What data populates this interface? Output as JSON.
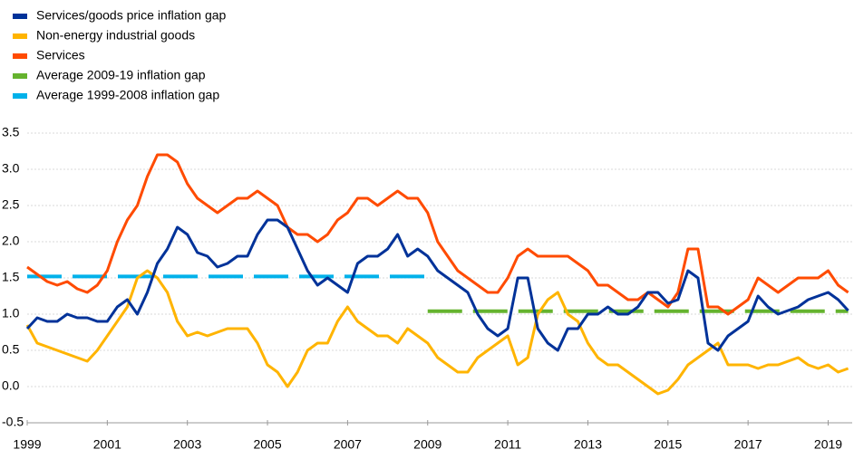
{
  "chart_data": {
    "type": "line",
    "x": [
      1999,
      1999.25,
      1999.5,
      1999.75,
      2000,
      2000.25,
      2000.5,
      2000.75,
      2001,
      2001.25,
      2001.5,
      2001.75,
      2002,
      2002.25,
      2002.5,
      2002.75,
      2003,
      2003.25,
      2003.5,
      2003.75,
      2004,
      2004.25,
      2004.5,
      2004.75,
      2005,
      2005.25,
      2005.5,
      2005.75,
      2006,
      2006.25,
      2006.5,
      2006.75,
      2007,
      2007.25,
      2007.5,
      2007.75,
      2008,
      2008.25,
      2008.5,
      2008.75,
      2009,
      2009.25,
      2009.5,
      2009.75,
      2010,
      2010.25,
      2010.5,
      2010.75,
      2011,
      2011.25,
      2011.5,
      2011.75,
      2012,
      2012.25,
      2012.5,
      2012.75,
      2013,
      2013.25,
      2013.5,
      2013.75,
      2014,
      2014.25,
      2014.5,
      2014.75,
      2015,
      2015.25,
      2015.5,
      2015.75,
      2016,
      2016.25,
      2016.5,
      2016.75,
      2017,
      2017.25,
      2017.5,
      2017.75,
      2018,
      2018.25,
      2018.5,
      2018.75,
      2019,
      2019.25,
      2019.5
    ],
    "series": [
      {
        "name": "Services/goods price inflation gap",
        "color": "#003299",
        "values": [
          0.8,
          0.95,
          0.9,
          0.9,
          1.0,
          0.95,
          0.95,
          0.9,
          0.9,
          1.1,
          1.2,
          1.0,
          1.3,
          1.7,
          1.9,
          2.2,
          2.1,
          1.85,
          1.8,
          1.65,
          1.7,
          1.8,
          1.8,
          2.1,
          2.3,
          2.3,
          2.2,
          1.9,
          1.6,
          1.4,
          1.5,
          1.4,
          1.3,
          1.7,
          1.8,
          1.8,
          1.9,
          2.1,
          1.8,
          1.9,
          1.8,
          1.6,
          1.5,
          1.4,
          1.3,
          1.0,
          0.8,
          0.7,
          0.8,
          1.5,
          1.5,
          0.8,
          0.6,
          0.5,
          0.8,
          0.8,
          1.0,
          1.0,
          1.1,
          1.0,
          1.0,
          1.1,
          1.3,
          1.3,
          1.15,
          1.2,
          1.6,
          1.5,
          0.6,
          0.5,
          0.7,
          0.8,
          0.9,
          1.25,
          1.1,
          1.0,
          1.05,
          1.1,
          1.2,
          1.25,
          1.3,
          1.2,
          1.05
        ]
      },
      {
        "name": "Non-energy industrial goods",
        "color": "#ffb400",
        "values": [
          0.85,
          0.6,
          0.55,
          0.5,
          0.45,
          0.4,
          0.35,
          0.5,
          0.7,
          0.9,
          1.1,
          1.5,
          1.6,
          1.5,
          1.3,
          0.9,
          0.7,
          0.75,
          0.7,
          0.75,
          0.8,
          0.8,
          0.8,
          0.6,
          0.3,
          0.2,
          0.0,
          0.2,
          0.5,
          0.6,
          0.6,
          0.9,
          1.1,
          0.9,
          0.8,
          0.7,
          0.7,
          0.6,
          0.8,
          0.7,
          0.6,
          0.4,
          0.3,
          0.2,
          0.2,
          0.4,
          0.5,
          0.6,
          0.7,
          0.3,
          0.4,
          1.0,
          1.2,
          1.3,
          1.0,
          0.9,
          0.6,
          0.4,
          0.3,
          0.3,
          0.2,
          0.1,
          0.0,
          -0.1,
          -0.05,
          0.1,
          0.3,
          0.4,
          0.5,
          0.6,
          0.3,
          0.3,
          0.3,
          0.25,
          0.3,
          0.3,
          0.35,
          0.4,
          0.3,
          0.25,
          0.3,
          0.2,
          0.25
        ]
      },
      {
        "name": "Services",
        "color": "#ff4b00",
        "values": [
          1.65,
          1.55,
          1.45,
          1.4,
          1.45,
          1.35,
          1.3,
          1.4,
          1.6,
          2.0,
          2.3,
          2.5,
          2.9,
          3.2,
          3.2,
          3.1,
          2.8,
          2.6,
          2.5,
          2.4,
          2.5,
          2.6,
          2.6,
          2.7,
          2.6,
          2.5,
          2.2,
          2.1,
          2.1,
          2.0,
          2.1,
          2.3,
          2.4,
          2.6,
          2.6,
          2.5,
          2.6,
          2.7,
          2.6,
          2.6,
          2.4,
          2.0,
          1.8,
          1.6,
          1.5,
          1.4,
          1.3,
          1.3,
          1.5,
          1.8,
          1.9,
          1.8,
          1.8,
          1.8,
          1.8,
          1.7,
          1.6,
          1.4,
          1.4,
          1.3,
          1.2,
          1.2,
          1.3,
          1.2,
          1.1,
          1.3,
          1.9,
          1.9,
          1.1,
          1.1,
          1.0,
          1.1,
          1.2,
          1.5,
          1.4,
          1.3,
          1.4,
          1.5,
          1.5,
          1.5,
          1.6,
          1.4,
          1.3
        ]
      },
      {
        "name": "Average 2009-19 inflation gap",
        "color": "#65b32e",
        "dash": true,
        "x": [
          2009,
          2019.5
        ],
        "values": [
          1.04,
          1.04
        ]
      },
      {
        "name": "Average 1999-2008 inflation gap",
        "color": "#00b1ea",
        "dash": true,
        "x": [
          1999,
          2008.95
        ],
        "values": [
          1.52,
          1.52
        ]
      }
    ],
    "xlim": [
      1999,
      2019.6
    ],
    "xticks": [
      1999,
      2001,
      2003,
      2005,
      2007,
      2009,
      2011,
      2013,
      2015,
      2017,
      2019
    ],
    "ylim": [
      -0.5,
      3.5
    ],
    "yticks": [
      -0.5,
      {
        "value": 0,
        "label": "0.0"
      },
      0.5,
      {
        "value": 1,
        "label": "1.0"
      },
      1.5,
      {
        "value": 2,
        "label": "2.0"
      },
      2.5,
      {
        "value": 3,
        "label": "3.0"
      },
      3.5
    ],
    "grid": true,
    "legend": "top-left"
  }
}
